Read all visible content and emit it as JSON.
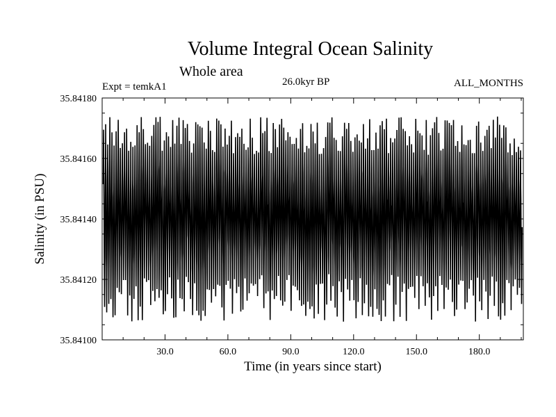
{
  "chart_data": {
    "type": "line",
    "title": "Volume Integral Ocean Salinity",
    "subtitle": "Whole area",
    "annotations": {
      "experiment": "Expt = temkA1",
      "epoch": "26.0kyr BP",
      "months": "ALL_MONTHS"
    },
    "xlabel": "Time (in years since start)",
    "ylabel": "Salinity (in PSU)",
    "xlim": [
      0,
      201
    ],
    "ylim": [
      35.841,
      35.8418
    ],
    "x_ticks": [
      30,
      60,
      90,
      120,
      150,
      180
    ],
    "x_tick_labels": [
      "30.0",
      "60.0",
      "90.0",
      "120.0",
      "150.0",
      "180.0"
    ],
    "y_ticks": [
      35.841,
      35.8412,
      35.8414,
      35.8416,
      35.8418
    ],
    "y_tick_labels": [
      "35.84100",
      "35.84120",
      "35.84140",
      "35.84160",
      "35.84180"
    ],
    "series": [
      {
        "name": "salinity",
        "description": "monthly values over 200 years, oscillating around 35.84143 PSU",
        "mean": 35.84143,
        "annual_max_range": [
          35.84161,
          35.84174
        ],
        "annual_min_range": [
          35.84106,
          35.84122
        ],
        "samples_per_year": 12,
        "years": 200
      }
    ]
  }
}
